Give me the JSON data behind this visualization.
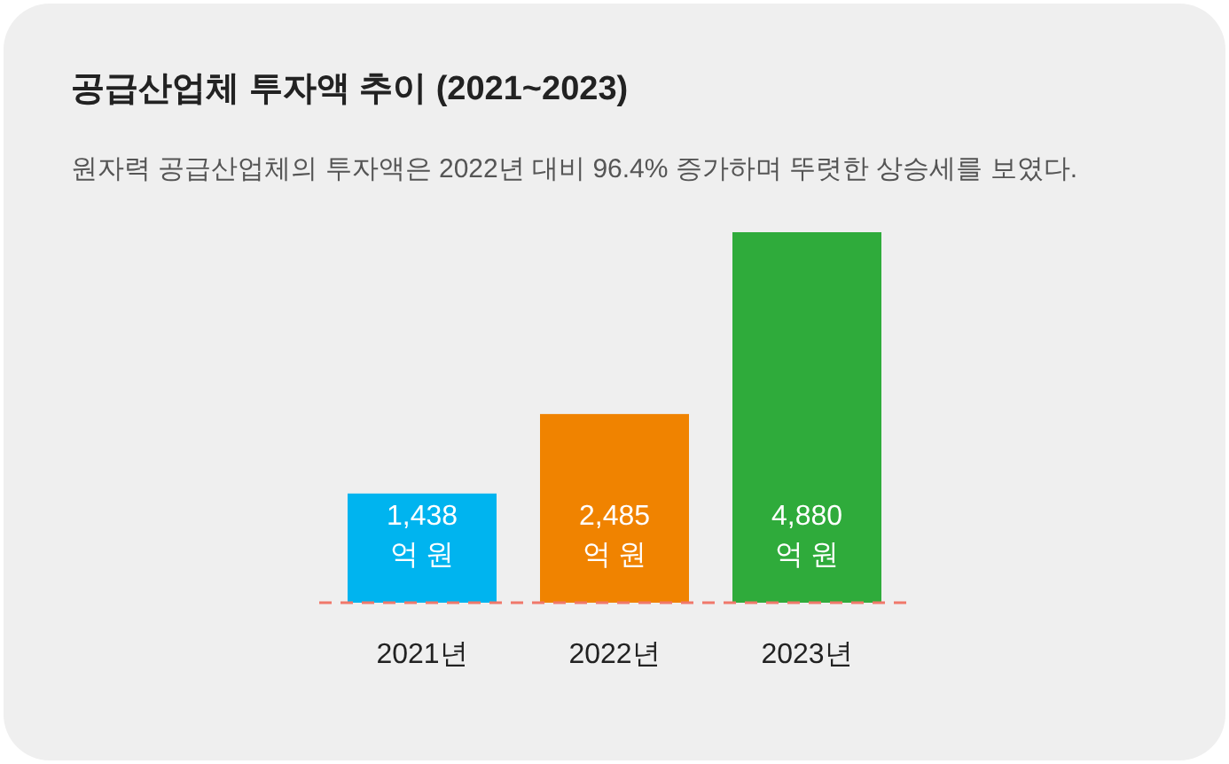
{
  "chart_data": {
    "type": "bar",
    "title": "공급산업체 투자액 추이 (2021~2023)",
    "subtitle": "원자력 공급산업체의 투자액은 2022년 대비 96.4% 증가하며 뚜렷한 상승세를 보였다.",
    "categories": [
      "2021년",
      "2022년",
      "2023년"
    ],
    "values": [
      1438,
      2485,
      4880
    ],
    "colors": [
      "#00b4ef",
      "#f08300",
      "#2fab3b"
    ],
    "value_labels": [
      "1,438\n억 원",
      "2,485\n억 원",
      "4,880\n억 원"
    ],
    "ref_lines": [
      {
        "axis": "y",
        "value": 0,
        "label": null,
        "color": "#f0786a",
        "line_style": "dashed"
      }
    ]
  }
}
